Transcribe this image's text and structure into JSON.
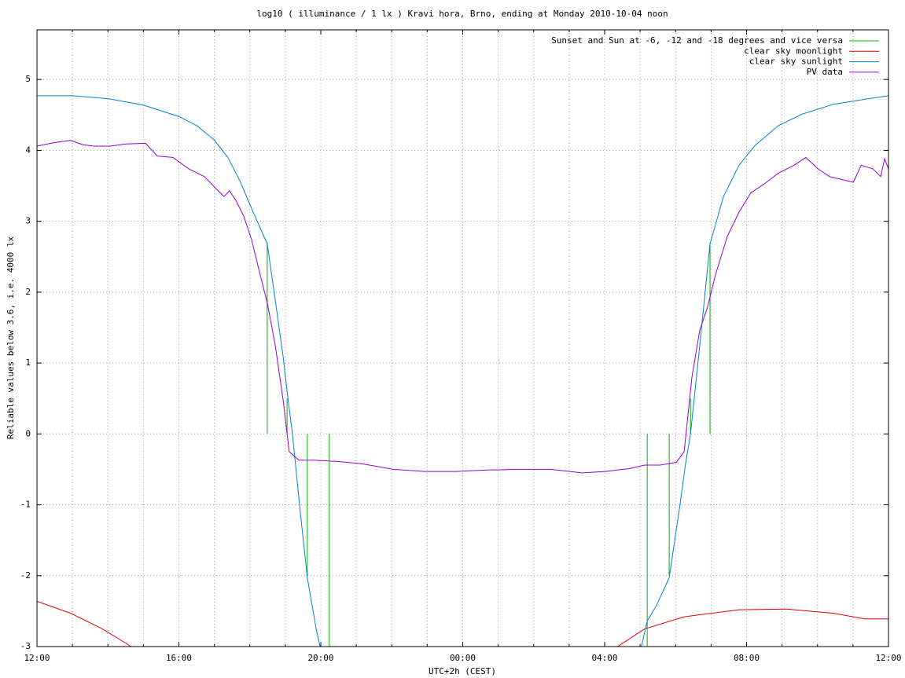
{
  "chart_data": {
    "type": "line",
    "title": "log10 ( illuminance / 1 lx ) Kravi hora, Brno, ending at Monday 2010-10-04 noon",
    "xlabel": "UTC+2h (CEST)",
    "ylabel": "Reliable values below 3.6, i.e. 4000 lx",
    "xlim": [
      0,
      24
    ],
    "ylim": [
      -3,
      5.7
    ],
    "xticks": [
      {
        "value": 0,
        "label": "12:00"
      },
      {
        "value": 4,
        "label": "16:00"
      },
      {
        "value": 8,
        "label": "20:00"
      },
      {
        "value": 12,
        "label": "00:00"
      },
      {
        "value": 16,
        "label": "04:00"
      },
      {
        "value": 20,
        "label": "08:00"
      },
      {
        "value": 24,
        "label": "12:00"
      }
    ],
    "xminorticks": [
      1,
      2,
      3,
      5,
      6,
      7,
      9,
      10,
      11,
      13,
      14,
      15,
      17,
      18,
      19,
      21,
      22,
      23
    ],
    "yticks": [
      -3,
      -2,
      -1,
      0,
      1,
      2,
      3,
      4,
      5
    ],
    "grid": true,
    "legend": "top-right",
    "series": [
      {
        "name": "Sunset and Sun at -6, -12 and -18 degrees and vice versa",
        "color": "#00b000",
        "style": "impulses",
        "x": [
          6.49,
          7.05,
          7.62,
          8.24,
          17.2,
          17.82,
          18.42,
          18.97
        ],
        "values": [
          2.7,
          0.5,
          -2.0,
          -3.5,
          -3.5,
          -2.0,
          0.5,
          2.7
        ]
      },
      {
        "name": "clear sky moonlight",
        "color": "#e00000",
        "style": "lines",
        "x": [
          0,
          0.95,
          1.84,
          2.5,
          2.77,
          null,
          16.24,
          17.13,
          18.24,
          19.79,
          21.12,
          22.45,
          23.33,
          24
        ],
        "values": [
          -2.36,
          -2.53,
          -2.75,
          -2.95,
          -3.04,
          null,
          -3.04,
          -2.75,
          -2.58,
          -2.48,
          -2.47,
          -2.53,
          -2.61,
          -2.61
        ]
      },
      {
        "name": "clear sky sunlight",
        "color": "#0080d0",
        "style": "lines",
        "x": [
          0,
          1.0,
          1.99,
          2.99,
          3.99,
          4.5,
          4.99,
          5.38,
          5.72,
          6.05,
          6.49,
          6.71,
          6.94,
          7.07,
          7.2,
          7.42,
          7.62,
          7.87,
          8.04,
          16.95,
          17.2,
          17.46,
          17.82,
          18.13,
          18.28,
          18.42,
          18.68,
          18.97,
          19.35,
          19.79,
          20.24,
          20.9,
          21.56,
          22.45,
          23.33,
          24
        ],
        "values": [
          4.77,
          4.77,
          4.73,
          4.64,
          4.48,
          4.35,
          4.15,
          3.9,
          3.57,
          3.18,
          2.68,
          1.91,
          1.08,
          0.52,
          0,
          -1.09,
          -2.03,
          -2.75,
          -3.14,
          -3.19,
          -2.64,
          -2.42,
          -2.03,
          -0.98,
          -0.42,
          0,
          1.24,
          2.68,
          3.35,
          3.79,
          4.07,
          4.35,
          4.51,
          4.65,
          4.72,
          4.77
        ]
      },
      {
        "name": "PV data",
        "color": "#9400d3",
        "style": "lines",
        "x": [
          0,
          0.29,
          0.62,
          0.95,
          1.29,
          1.62,
          2.06,
          2.5,
          3.06,
          3.39,
          3.83,
          4.28,
          4.72,
          5.05,
          5.27,
          5.43,
          5.61,
          5.83,
          6.05,
          6.27,
          6.49,
          6.72,
          6.94,
          7.11,
          7.38,
          7.82,
          8.49,
          9.15,
          10.04,
          10.93,
          11.81,
          12.7,
          13.58,
          14.47,
          15.36,
          16.02,
          16.69,
          17.13,
          17.57,
          18.02,
          18.24,
          18.46,
          18.68,
          18.9,
          19.12,
          19.46,
          19.79,
          20.12,
          20.45,
          20.9,
          21.34,
          21.67,
          22.01,
          22.34,
          22.67,
          23.01,
          23.23,
          23.56,
          23.78,
          23.89,
          24
        ],
        "values": [
          4.06,
          4.09,
          4.12,
          4.14,
          4.08,
          4.06,
          4.06,
          4.09,
          4.1,
          3.92,
          3.9,
          3.74,
          3.63,
          3.46,
          3.35,
          3.43,
          3.29,
          3.07,
          2.74,
          2.29,
          1.85,
          1.24,
          0.47,
          -0.25,
          -0.37,
          -0.37,
          -0.39,
          -0.42,
          -0.5,
          -0.53,
          -0.53,
          -0.51,
          -0.5,
          -0.5,
          -0.55,
          -0.53,
          -0.49,
          -0.44,
          -0.44,
          -0.4,
          -0.25,
          0.8,
          1.46,
          1.79,
          2.24,
          2.79,
          3.13,
          3.4,
          3.51,
          3.68,
          3.79,
          3.9,
          3.74,
          3.63,
          3.59,
          3.55,
          3.79,
          3.74,
          3.63,
          3.88,
          3.74
        ]
      }
    ]
  }
}
